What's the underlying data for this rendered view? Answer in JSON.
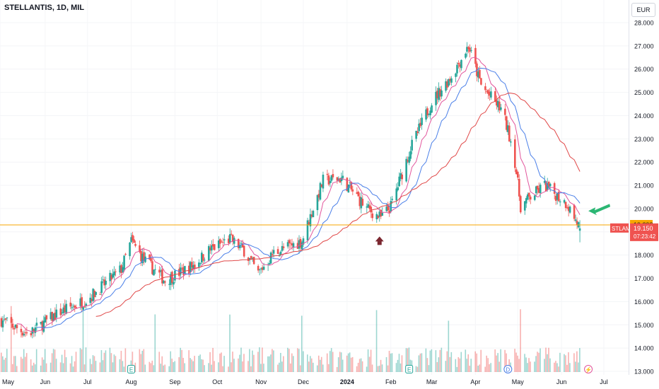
{
  "header": {
    "title": "STELLANTIS, 1D, MIL"
  },
  "currency_button": "EUR",
  "colors": {
    "up": "#26a69a",
    "down": "#ef5350",
    "ma_fast": "#e2559c",
    "ma_mid": "#4a7fe8",
    "ma_slow": "#e04848",
    "hline": "#f7a600",
    "arrow_down": "#7b2730",
    "arrow_up": "#2bb673"
  },
  "price_labels": {
    "level": "19.298",
    "ticker": "STLAM",
    "last": "19.150",
    "countdown": "07:23:42"
  },
  "event_markers": [
    "E",
    "E",
    "D",
    "E"
  ],
  "chart_data": {
    "type": "candlestick",
    "title": "STELLANTIS, 1D, MIL",
    "currency": "EUR",
    "y_axis": {
      "range": [
        13.0,
        28.0
      ],
      "ticks": [
        "13.000",
        "14.000",
        "15.000",
        "16.000",
        "17.000",
        "18.000",
        "19.000",
        "20.000",
        "21.000",
        "22.000",
        "23.000",
        "24.000",
        "25.000",
        "26.000",
        "27.000",
        "28.000"
      ]
    },
    "x_axis": {
      "ticks": [
        "May",
        "Jun",
        "Jul",
        "Aug",
        "Sep",
        "Oct",
        "Nov",
        "Dec",
        "2024",
        "Feb",
        "Mar",
        "Apr",
        "May",
        "Jun",
        "Jul"
      ]
    },
    "horizontal_line": 19.298,
    "last_price": 19.15,
    "close_anchors": [
      {
        "date": "2023-05-01",
        "close": 15.2
      },
      {
        "date": "2023-05-20",
        "close": 14.6
      },
      {
        "date": "2023-06-10",
        "close": 15.5
      },
      {
        "date": "2023-07-01",
        "close": 16.1
      },
      {
        "date": "2023-07-25",
        "close": 17.4
      },
      {
        "date": "2023-08-01",
        "close": 18.6
      },
      {
        "date": "2023-08-10",
        "close": 17.8
      },
      {
        "date": "2023-08-25",
        "close": 16.9
      },
      {
        "date": "2023-09-15",
        "close": 17.6
      },
      {
        "date": "2023-09-25",
        "close": 18.2
      },
      {
        "date": "2023-10-10",
        "close": 18.7
      },
      {
        "date": "2023-10-20",
        "close": 18.2
      },
      {
        "date": "2023-10-30",
        "close": 17.2
      },
      {
        "date": "2023-11-10",
        "close": 18.1
      },
      {
        "date": "2023-11-30",
        "close": 18.6
      },
      {
        "date": "2023-12-05",
        "close": 19.5
      },
      {
        "date": "2023-12-15",
        "close": 21.2
      },
      {
        "date": "2023-12-28",
        "close": 21.3
      },
      {
        "date": "2024-01-15",
        "close": 20.0
      },
      {
        "date": "2024-01-25",
        "close": 19.6
      },
      {
        "date": "2024-02-01",
        "close": 20.1
      },
      {
        "date": "2024-02-15",
        "close": 22.6
      },
      {
        "date": "2024-03-01",
        "close": 24.6
      },
      {
        "date": "2024-03-15",
        "close": 25.7
      },
      {
        "date": "2024-03-27",
        "close": 27.0
      },
      {
        "date": "2024-04-05",
        "close": 25.3
      },
      {
        "date": "2024-04-20",
        "close": 24.2
      },
      {
        "date": "2024-04-28",
        "close": 22.5
      },
      {
        "date": "2024-05-03",
        "close": 20.1
      },
      {
        "date": "2024-05-10",
        "close": 20.5
      },
      {
        "date": "2024-05-20",
        "close": 21.0
      },
      {
        "date": "2024-06-05",
        "close": 20.2
      },
      {
        "date": "2024-06-14",
        "close": 19.15
      }
    ],
    "series": [
      {
        "name": "STLAM",
        "kind": "candles"
      }
    ],
    "annotations": [
      {
        "kind": "arrow-up",
        "date": "2024-01-24",
        "price": 18.8
      },
      {
        "kind": "arrow-left",
        "date": "2024-06-20",
        "price": 19.9
      }
    ]
  }
}
